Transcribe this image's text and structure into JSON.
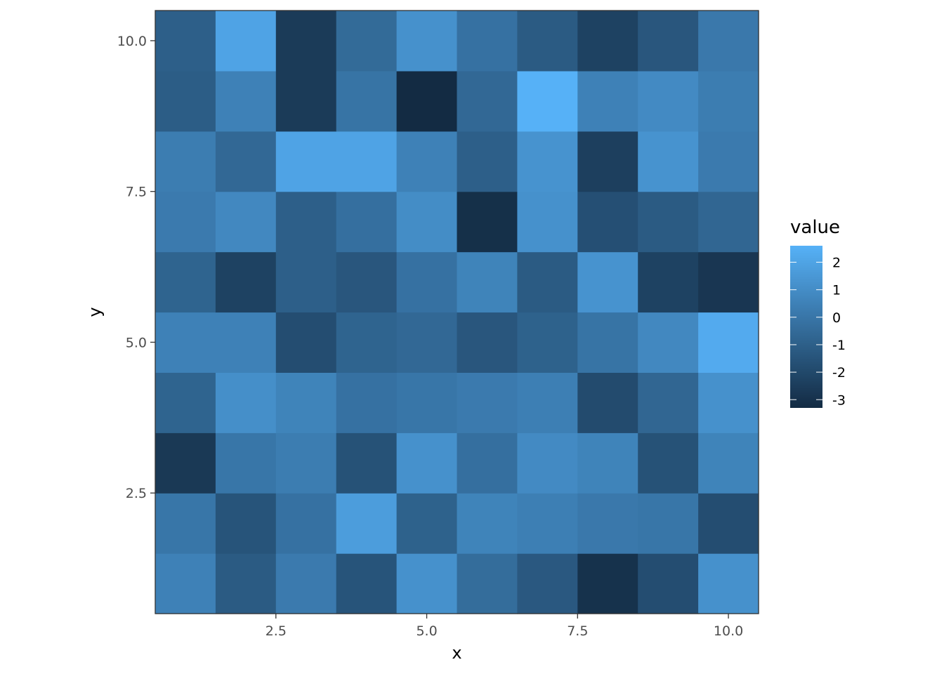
{
  "chart_data": {
    "type": "heatmap",
    "title": "",
    "xlabel": "x",
    "ylabel": "y",
    "x": [
      1,
      2,
      3,
      4,
      5,
      6,
      7,
      8,
      9,
      10
    ],
    "y": [
      1,
      2,
      3,
      4,
      5,
      6,
      7,
      8,
      9,
      10
    ],
    "xlim": [
      0.5,
      10.5
    ],
    "ylim": [
      0.5,
      10.5
    ],
    "x_ticks": [
      2.5,
      5.0,
      7.5,
      10.0
    ],
    "x_tick_labels": [
      "2.5",
      "5.0",
      "7.5",
      "10.0"
    ],
    "y_ticks": [
      2.5,
      5.0,
      7.5,
      10.0
    ],
    "y_tick_labels": [
      "2.5",
      "5.0",
      "7.5",
      "10.0"
    ],
    "grid": false,
    "values_by_row_from_y1": [
      [
        0.5,
        -1.2,
        0.2,
        -1.5,
        1.2,
        -0.4,
        -1.3,
        -3.0,
        -1.8,
        1.2
      ],
      [
        0.0,
        -1.5,
        -0.2,
        1.7,
        -0.9,
        0.6,
        0.4,
        0.1,
        0.0,
        -1.8
      ],
      [
        -2.7,
        0.0,
        0.3,
        -1.6,
        1.2,
        -0.3,
        0.9,
        0.6,
        -1.6,
        0.6
      ],
      [
        -0.8,
        1.1,
        0.6,
        -0.2,
        0.0,
        0.2,
        0.4,
        -1.9,
        -0.7,
        1.2
      ],
      [
        0.5,
        0.5,
        -1.8,
        -0.8,
        -0.6,
        -1.4,
        -0.9,
        -0.1,
        0.8,
        2.3
      ],
      [
        -0.8,
        -2.3,
        -1.0,
        -1.4,
        -0.2,
        0.6,
        -1.2,
        1.3,
        -2.3,
        -2.8
      ],
      [
        0.2,
        0.8,
        -1.0,
        -0.3,
        1.0,
        -3.1,
        1.2,
        -1.7,
        -1.2,
        -0.7
      ],
      [
        0.3,
        -0.6,
        2.0,
        2.0,
        0.5,
        -1.0,
        1.3,
        -2.4,
        1.3,
        0.2
      ],
      [
        -1.1,
        0.5,
        -2.6,
        -0.1,
        -3.3,
        -0.6,
        2.6,
        0.5,
        0.9,
        0.3
      ],
      [
        -1.0,
        2.0,
        -2.6,
        -0.5,
        1.2,
        -0.2,
        -1.2,
        -2.3,
        -1.4,
        0.1
      ]
    ],
    "legend": {
      "title": "value",
      "position": "right",
      "breaks": [
        2,
        1,
        0,
        -1,
        -2,
        -3
      ],
      "labels": [
        "2",
        "1",
        "0",
        "-1",
        "-2",
        "-3"
      ],
      "range": [
        -3.3,
        2.6
      ]
    },
    "colors": {
      "low": "#132B43",
      "high": "#56B1F7",
      "panel_border": "#333333",
      "tick_text": "#4d4d4d"
    }
  }
}
